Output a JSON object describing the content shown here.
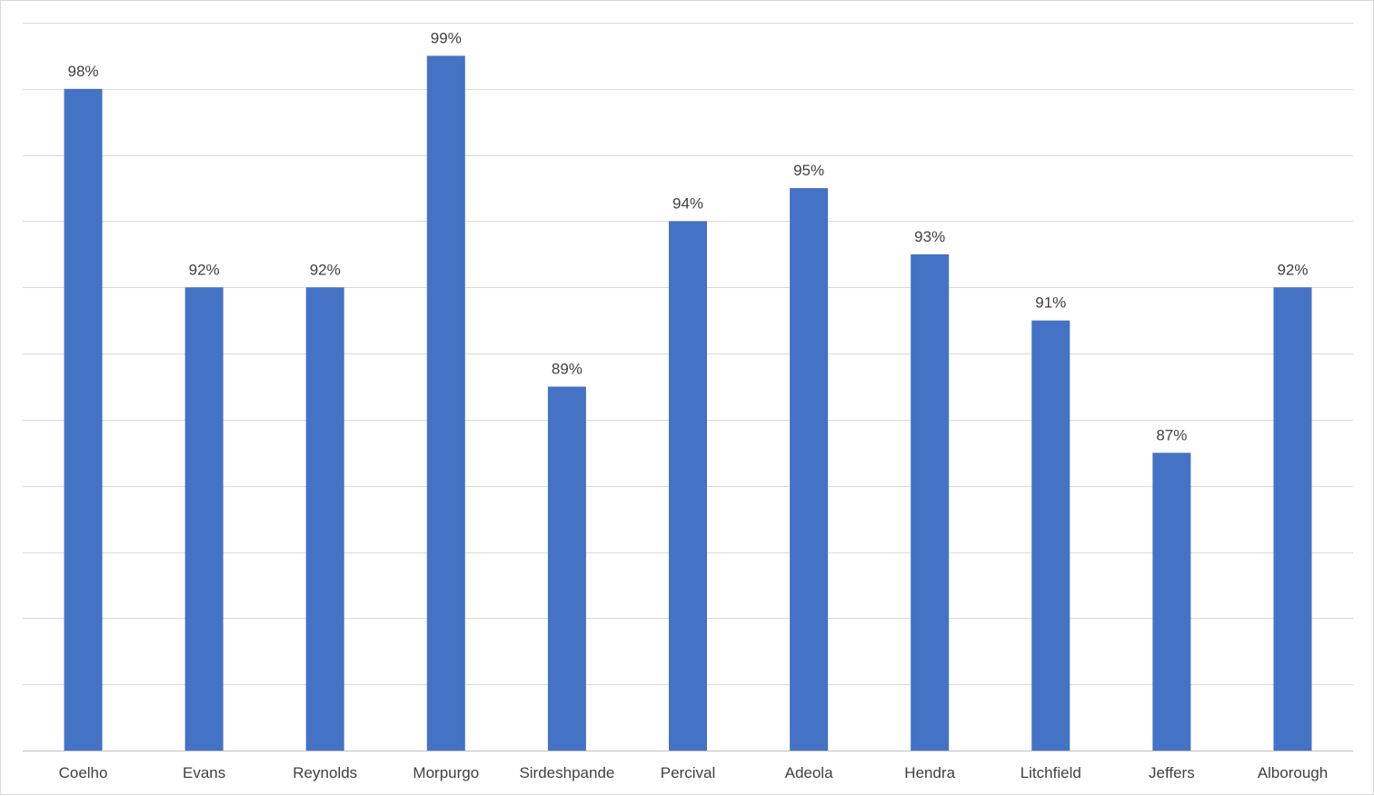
{
  "chart_data": {
    "type": "bar",
    "categories": [
      "Coelho",
      "Evans",
      "Reynolds",
      "Morpurgo",
      "Sirdeshpande",
      "Percival",
      "Adeola",
      "Hendra",
      "Litchfield",
      "Jeffers",
      "Alborough"
    ],
    "values": [
      98,
      92,
      92,
      99,
      89,
      94,
      95,
      93,
      91,
      87,
      92
    ],
    "data_labels": [
      "98%",
      "92%",
      "92%",
      "99%",
      "89%",
      "94%",
      "95%",
      "93%",
      "91%",
      "87%",
      "92%"
    ],
    "ylim": [
      78,
      100
    ],
    "bar_color": "#4472c4",
    "grid": true,
    "legend": false
  }
}
